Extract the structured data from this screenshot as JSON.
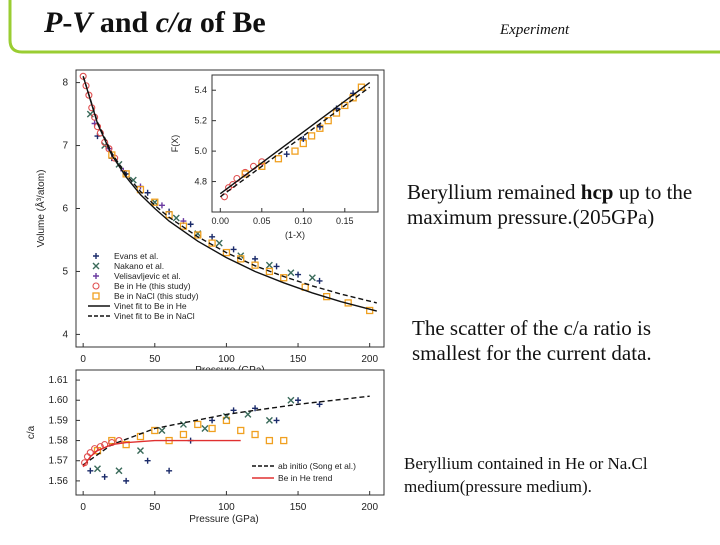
{
  "slide": {
    "title_part1": "P",
    "title_part2": "-",
    "title_part3": "V",
    "title_part4": " and ",
    "title_part5": "c/a",
    "title_part6": " of Be",
    "experiment": "Experiment",
    "note1_a": "Beryllium remained  ",
    "note1_b": "hcp",
    "note1_c": " up to the maximum pressure.(205GPa)",
    "note2": "The scatter of the c/a ratio is smallest for the current data.",
    "note3": "Beryllium contained in He or Na.Cl medium(pressure medium).",
    "colors": {
      "accent_green": "#9acd32",
      "orange": "#f0a020",
      "red": "#e05050",
      "navy": "#1a2a6a",
      "teal": "#3a6a5a"
    }
  },
  "chart_data": [
    {
      "type": "scatter",
      "xlabel": "Pressure (GPa)",
      "ylabel": "Volume (Å³/atom)",
      "xlim": [
        -5,
        210
      ],
      "ylim": [
        3.8,
        8.2
      ],
      "xticks": [
        0,
        50,
        100,
        150,
        200
      ],
      "yticks": [
        4,
        5,
        6,
        7,
        8
      ],
      "legend_position": "bottom-left",
      "series": [
        {
          "name": "Evans et al.",
          "marker": "plus",
          "color": "#1a2a6a",
          "points": [
            [
              10,
              7.15
            ],
            [
              20,
              6.8
            ],
            [
              30,
              6.55
            ],
            [
              45,
              6.25
            ],
            [
              60,
              5.95
            ],
            [
              75,
              5.75
            ],
            [
              90,
              5.55
            ],
            [
              105,
              5.35
            ],
            [
              120,
              5.2
            ],
            [
              135,
              5.08
            ],
            [
              150,
              4.95
            ],
            [
              165,
              4.85
            ]
          ]
        },
        {
          "name": "Nakano et al.",
          "marker": "cross",
          "color": "#3a6a5a",
          "points": [
            [
              5,
              7.5
            ],
            [
              15,
              7.0
            ],
            [
              25,
              6.7
            ],
            [
              35,
              6.45
            ],
            [
              50,
              6.1
            ],
            [
              65,
              5.85
            ],
            [
              80,
              5.6
            ],
            [
              95,
              5.45
            ],
            [
              110,
              5.25
            ],
            [
              130,
              5.1
            ],
            [
              145,
              4.98
            ],
            [
              160,
              4.9
            ]
          ]
        },
        {
          "name": "Velisavljevic et al.",
          "marker": "plus",
          "color": "#6a3aa0",
          "points": [
            [
              8,
              7.35
            ],
            [
              18,
              6.95
            ],
            [
              28,
              6.6
            ],
            [
              40,
              6.35
            ],
            [
              55,
              6.05
            ],
            [
              70,
              5.8
            ]
          ]
        },
        {
          "name": "Be in He (this study)",
          "marker": "circle",
          "color": "#e05050",
          "points": [
            [
              0,
              8.1
            ],
            [
              2,
              7.95
            ],
            [
              4,
              7.8
            ],
            [
              6,
              7.6
            ],
            [
              8,
              7.45
            ],
            [
              10,
              7.3
            ],
            [
              12,
              7.2
            ],
            [
              15,
              7.05
            ],
            [
              18,
              6.95
            ],
            [
              22,
              6.8
            ]
          ]
        },
        {
          "name": "Be in NaCl (this study)",
          "marker": "square",
          "color": "#f0a020",
          "points": [
            [
              20,
              6.85
            ],
            [
              30,
              6.55
            ],
            [
              40,
              6.3
            ],
            [
              50,
              6.1
            ],
            [
              60,
              5.9
            ],
            [
              70,
              5.72
            ],
            [
              80,
              5.58
            ],
            [
              90,
              5.45
            ],
            [
              100,
              5.3
            ],
            [
              110,
              5.2
            ],
            [
              120,
              5.1
            ],
            [
              130,
              5.0
            ],
            [
              140,
              4.9
            ],
            [
              155,
              4.75
            ],
            [
              170,
              4.6
            ],
            [
              185,
              4.5
            ],
            [
              200,
              4.38
            ]
          ]
        },
        {
          "name": "Vinet fit to Be in He",
          "marker": "line",
          "dash": false,
          "color": "#111111",
          "points": [
            [
              0,
              8.1
            ],
            [
              10,
              7.35
            ],
            [
              20,
              6.85
            ],
            [
              30,
              6.5
            ],
            [
              40,
              6.22
            ],
            [
              50,
              6.0
            ],
            [
              60,
              5.8
            ],
            [
              80,
              5.48
            ],
            [
              100,
              5.22
            ],
            [
              120,
              5.0
            ],
            [
              140,
              4.82
            ],
            [
              160,
              4.66
            ],
            [
              180,
              4.52
            ],
            [
              205,
              4.37
            ]
          ]
        },
        {
          "name": "Vinet fit to Be in NaCl",
          "marker": "line",
          "dash": true,
          "color": "#111111",
          "points": [
            [
              0,
              8.1
            ],
            [
              10,
              7.37
            ],
            [
              20,
              6.88
            ],
            [
              30,
              6.54
            ],
            [
              40,
              6.27
            ],
            [
              50,
              6.05
            ],
            [
              60,
              5.86
            ],
            [
              80,
              5.55
            ],
            [
              100,
              5.3
            ],
            [
              120,
              5.09
            ],
            [
              140,
              4.92
            ],
            [
              160,
              4.77
            ],
            [
              180,
              4.64
            ],
            [
              205,
              4.5
            ]
          ]
        }
      ]
    },
    {
      "type": "scatter",
      "xlabel": "(1-X)",
      "ylabel": "F(X)",
      "xlim": [
        -0.01,
        0.19
      ],
      "ylim": [
        4.6,
        5.5
      ],
      "xticks": [
        "0.00",
        "0.05",
        "0.10",
        "0.15"
      ],
      "yticks": [
        "4.8",
        "5.0",
        "5.2",
        "5.4"
      ],
      "series": [
        {
          "name": "Be in He (this study)",
          "marker": "circle",
          "color": "#e05050",
          "points": [
            [
              0.005,
              4.7
            ],
            [
              0.01,
              4.76
            ],
            [
              0.015,
              4.78
            ],
            [
              0.02,
              4.82
            ],
            [
              0.03,
              4.86
            ],
            [
              0.04,
              4.9
            ],
            [
              0.05,
              4.93
            ]
          ]
        },
        {
          "name": "Be in NaCl (this study)",
          "marker": "square",
          "color": "#f0a020",
          "points": [
            [
              0.03,
              4.85
            ],
            [
              0.05,
              4.9
            ],
            [
              0.07,
              4.95
            ],
            [
              0.09,
              5.0
            ],
            [
              0.1,
              5.05
            ],
            [
              0.11,
              5.1
            ],
            [
              0.12,
              5.15
            ],
            [
              0.13,
              5.2
            ],
            [
              0.14,
              5.25
            ],
            [
              0.15,
              5.3
            ],
            [
              0.16,
              5.35
            ],
            [
              0.17,
              5.42
            ]
          ]
        },
        {
          "name": "Evans et al.",
          "marker": "plus",
          "color": "#1a2a6a",
          "points": [
            [
              0.08,
              4.98
            ],
            [
              0.1,
              5.08
            ],
            [
              0.12,
              5.16
            ],
            [
              0.14,
              5.28
            ],
            [
              0.16,
              5.38
            ]
          ]
        },
        {
          "name": "Vinet fit to Be in He",
          "marker": "line",
          "dash": false,
          "color": "#111111",
          "points": [
            [
              0.0,
              4.72
            ],
            [
              0.18,
              5.45
            ]
          ]
        },
        {
          "name": "Vinet fit to Be in NaCl",
          "marker": "line",
          "dash": true,
          "color": "#111111",
          "points": [
            [
              0.0,
              4.7
            ],
            [
              0.18,
              5.42
            ]
          ]
        }
      ]
    },
    {
      "type": "scatter",
      "xlabel": "Pressure (GPa)",
      "ylabel": "c/a",
      "xlim": [
        -5,
        210
      ],
      "ylim": [
        1.553,
        1.615
      ],
      "xticks": [
        0,
        50,
        100,
        150,
        200
      ],
      "yticks": [
        "1.56",
        "1.57",
        "1.58",
        "1.59",
        "1.60",
        "1.61"
      ],
      "legend_position": "bottom-right",
      "series": [
        {
          "name": "Be in NaCl (this study)",
          "marker": "square",
          "color": "#f0a020",
          "points": [
            [
              10,
              1.575
            ],
            [
              20,
              1.58
            ],
            [
              30,
              1.578
            ],
            [
              40,
              1.582
            ],
            [
              50,
              1.585
            ],
            [
              60,
              1.58
            ],
            [
              70,
              1.583
            ],
            [
              80,
              1.588
            ],
            [
              90,
              1.586
            ],
            [
              100,
              1.59
            ],
            [
              110,
              1.585
            ],
            [
              120,
              1.583
            ],
            [
              130,
              1.58
            ],
            [
              140,
              1.58
            ]
          ]
        },
        {
          "name": "Be in He (this study)",
          "marker": "circle",
          "color": "#e05050",
          "points": [
            [
              1,
              1.569
            ],
            [
              3,
              1.572
            ],
            [
              5,
              1.574
            ],
            [
              8,
              1.576
            ],
            [
              12,
              1.577
            ],
            [
              15,
              1.578
            ],
            [
              20,
              1.579
            ],
            [
              25,
              1.58
            ]
          ]
        },
        {
          "name": "Evans et al.",
          "marker": "plus",
          "color": "#1a2a6a",
          "points": [
            [
              5,
              1.565
            ],
            [
              15,
              1.562
            ],
            [
              30,
              1.56
            ],
            [
              45,
              1.57
            ],
            [
              60,
              1.565
            ],
            [
              75,
              1.58
            ],
            [
              90,
              1.59
            ],
            [
              105,
              1.595
            ],
            [
              120,
              1.596
            ],
            [
              135,
              1.59
            ],
            [
              150,
              1.6
            ],
            [
              165,
              1.598
            ]
          ]
        },
        {
          "name": "Nakano et al.",
          "marker": "cross",
          "color": "#3a6a5a",
          "points": [
            [
              10,
              1.566
            ],
            [
              25,
              1.565
            ],
            [
              40,
              1.575
            ],
            [
              55,
              1.585
            ],
            [
              70,
              1.588
            ],
            [
              85,
              1.586
            ],
            [
              100,
              1.592
            ],
            [
              115,
              1.593
            ],
            [
              130,
              1.59
            ],
            [
              145,
              1.6
            ]
          ]
        },
        {
          "name": "ab initio (Song et al.)",
          "marker": "line",
          "dash": true,
          "color": "#111111",
          "points": [
            [
              0,
              1.568
            ],
            [
              20,
              1.578
            ],
            [
              50,
              1.586
            ],
            [
              100,
              1.593
            ],
            [
              150,
              1.598
            ],
            [
              200,
              1.602
            ]
          ]
        },
        {
          "name": "Be in He trend",
          "marker": "line",
          "dash": false,
          "color": "#e03030",
          "points": [
            [
              0,
              1.567
            ],
            [
              5,
              1.572
            ],
            [
              10,
              1.575
            ],
            [
              20,
              1.578
            ],
            [
              30,
              1.579
            ],
            [
              50,
              1.58
            ],
            [
              80,
              1.58
            ],
            [
              110,
              1.58
            ]
          ]
        }
      ]
    }
  ]
}
